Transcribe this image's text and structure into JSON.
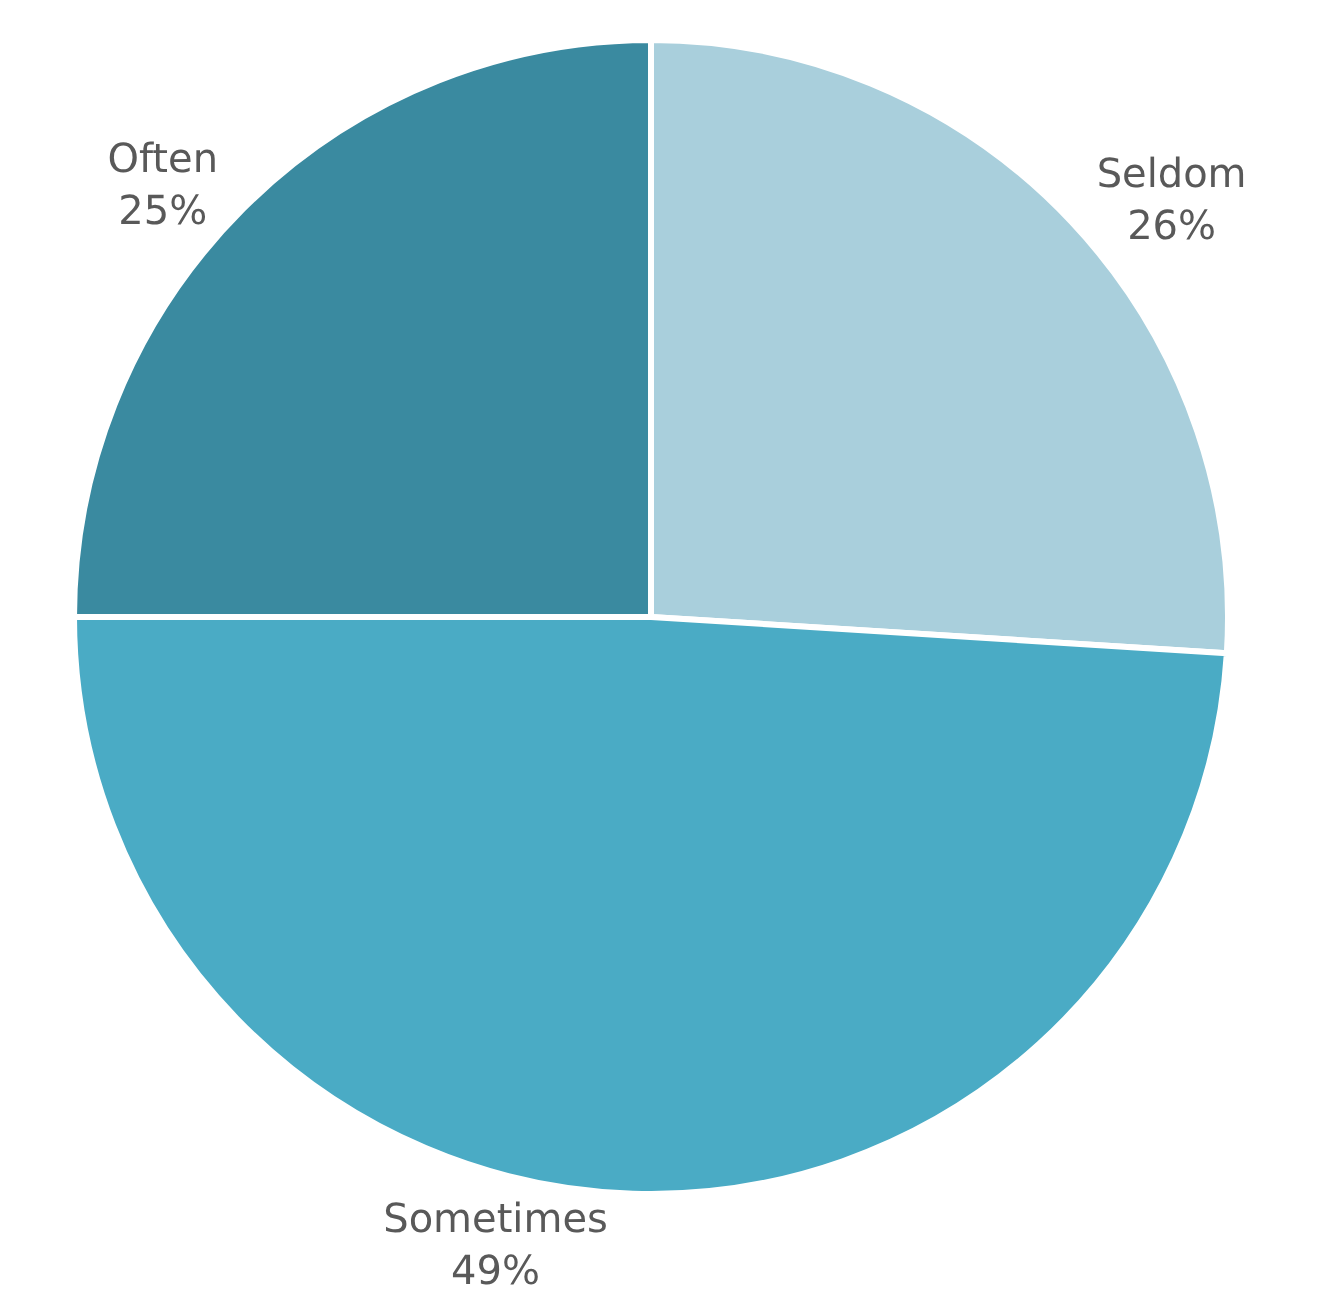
{
  "chart_data": {
    "type": "pie",
    "categories": [
      "Seldom",
      "Sometimes",
      "Often"
    ],
    "values": [
      26,
      49,
      25
    ],
    "colors": [
      "#a9cfdc",
      "#4aabc5",
      "#3a8aa0"
    ],
    "value_labels": [
      "26%",
      "49%",
      "25%"
    ],
    "legend": false
  }
}
